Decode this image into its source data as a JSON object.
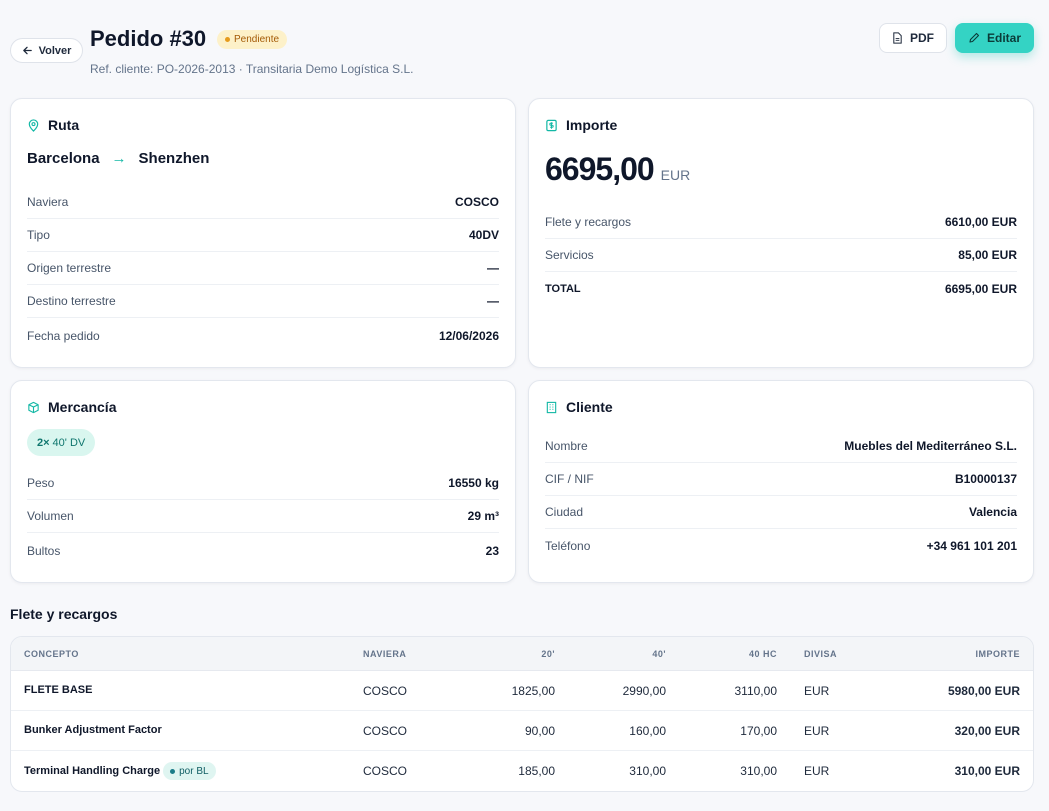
{
  "header": {
    "back_label": "Volver",
    "title": "Pedido #30",
    "status": "Pendiente",
    "status_color": "#fdf1c9",
    "subtitle": "Ref. cliente: PO-2026-2013 · Transitaria Demo Logística S.L.",
    "pdf_label": "PDF",
    "edit_label": "Editar",
    "accent": "#34d3c4"
  },
  "route": {
    "heading": "Ruta",
    "origin": "Barcelona",
    "arrow": "→",
    "destination": "Shenzhen",
    "rows": [
      {
        "label": "Naviera",
        "value": "COSCO"
      },
      {
        "label": "Tipo",
        "value": "40DV"
      },
      {
        "label": "Origen terrestre",
        "value": "—"
      },
      {
        "label": "Destino terrestre",
        "value": "—"
      },
      {
        "label": "Fecha pedido",
        "value": "12/06/2026"
      }
    ]
  },
  "amount": {
    "heading": "Importe",
    "total": "6695,00",
    "currency": "EUR",
    "rows": [
      {
        "label": "Flete y recargos",
        "value": "6610,00 EUR"
      },
      {
        "label": "Servicios",
        "value": "85,00 EUR"
      },
      {
        "label": "TOTAL",
        "value": "6695,00 EUR"
      }
    ]
  },
  "goods": {
    "heading": "Mercancía",
    "container_qty": "2×",
    "container_type": "40' DV",
    "rows": [
      {
        "label": "Peso",
        "value": "16550 kg"
      },
      {
        "label": "Volumen",
        "value": "29 m³"
      },
      {
        "label": "Bultos",
        "value": "23"
      }
    ]
  },
  "client": {
    "heading": "Cliente",
    "rows": [
      {
        "label": "Nombre",
        "value": "Muebles del Mediterráneo S.L."
      },
      {
        "label": "CIF / NIF",
        "value": "B10000137"
      },
      {
        "label": "Ciudad",
        "value": "Valencia"
      },
      {
        "label": "Teléfono",
        "value": "+34 961 101 201"
      }
    ]
  },
  "freight": {
    "heading": "Flete y recargos",
    "columns": [
      "CONCEPTO",
      "NAVIERA",
      "20'",
      "40'",
      "40 HC",
      "DIVISA",
      "IMPORTE"
    ],
    "rows": [
      {
        "concept": "FLETE BASE",
        "carrier": "COSCO",
        "c20": "1825,00",
        "c40": "2990,00",
        "c40hc": "3110,00",
        "currency": "EUR",
        "amount": "5980,00 EUR",
        "badge": ""
      },
      {
        "concept": "Bunker Adjustment Factor",
        "carrier": "COSCO",
        "c20": "90,00",
        "c40": "160,00",
        "c40hc": "170,00",
        "currency": "EUR",
        "amount": "320,00 EUR",
        "badge": ""
      },
      {
        "concept": "Terminal Handling Charge",
        "carrier": "COSCO",
        "c20": "185,00",
        "c40": "310,00",
        "c40hc": "310,00",
        "currency": "EUR",
        "amount": "310,00 EUR",
        "badge": "por BL"
      }
    ]
  }
}
